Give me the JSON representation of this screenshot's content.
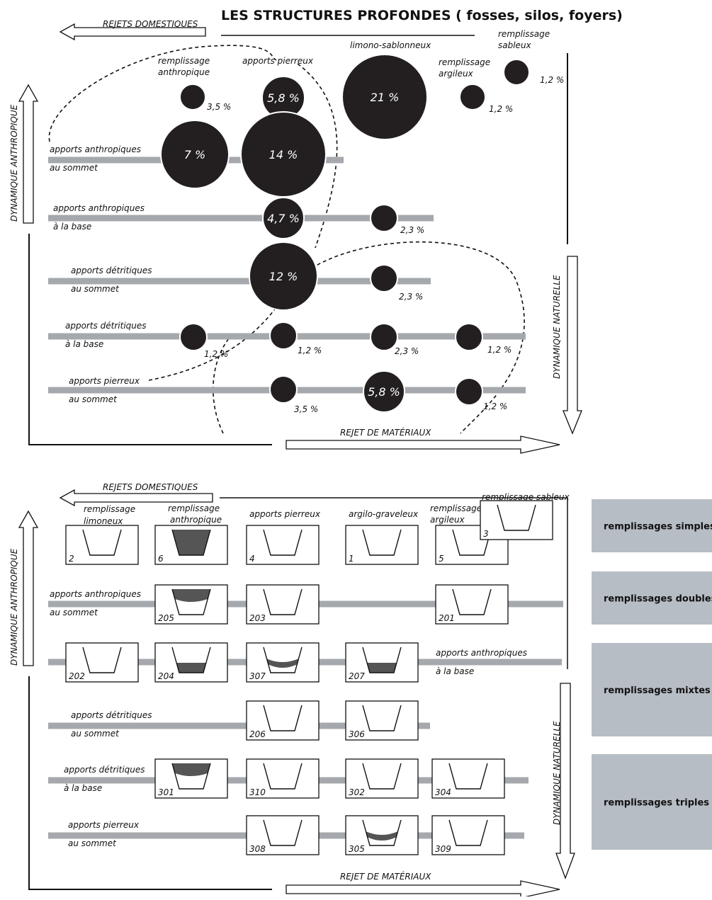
{
  "title": "LES STRUCTURES PROFONDES ( fosses, silos, foyers)",
  "top": {
    "rejets_domestiques": "REJETS DOMESTIQUES",
    "dynamique_anthropique": "DYNAMIQUE ANTHROPIQUE",
    "dynamique_naturelle": "DYNAMIQUE NATURELLE",
    "rejet_materiaux": "REJET DE MATÉRIAUX",
    "columns": [
      [
        "remplissage",
        "anthropique"
      ],
      [
        "apports pierreux"
      ],
      [
        "limono-sablonneux"
      ],
      [
        "remplissage",
        "argileux"
      ],
      [
        "remplissage",
        "sableux"
      ]
    ],
    "rows": [
      [
        "apports anthropiques",
        "au sommet"
      ],
      [
        "apports anthropiques",
        "à la base"
      ],
      [
        "apports détritiques",
        "au sommet"
      ],
      [
        "apports détritiques",
        "à la base"
      ],
      [
        "apports pierreux",
        "au sommet"
      ]
    ],
    "bubbles": [
      "3,5 %",
      "5,8 %",
      "21 %",
      "1,2 %",
      "1,2 %",
      "7 %",
      "14 %",
      "4,7 %",
      "2,3 %",
      "12 %",
      "2,3 %",
      "1,2 %",
      "1,2 %",
      "2,3 %",
      "1,2 %",
      "3,5 %",
      "5,8 %",
      "1,2 %"
    ]
  },
  "bottom": {
    "rejets_domestiques": "REJETS DOMESTIQUES",
    "dynamique_anthropique": "DYNAMIQUE ANTHROPIQUE",
    "dynamique_naturelle": "DYNAMIQUE NATURELLE",
    "rejet_materiaux": "REJET DE MATÉRIAUX",
    "columns": [
      [
        "remplissage",
        "limoneux"
      ],
      [
        "remplissage",
        "anthropique"
      ],
      [
        "apports pierreux"
      ],
      [
        "argilo-graveleux"
      ],
      [
        "remplissage",
        "argileux"
      ],
      [
        "remplissage sableux"
      ]
    ],
    "rows": [
      [
        "apports anthropiques",
        "au sommet"
      ],
      [
        "apports anthropiques",
        "à la base"
      ],
      [
        "apports détritiques",
        "au sommet"
      ],
      [
        "apports détritiques",
        "à la base"
      ],
      [
        "apports pierreux",
        "au sommet"
      ]
    ],
    "pits": [
      "2",
      "6",
      "4",
      "1",
      "5",
      "3",
      "205",
      "203",
      "201",
      "202",
      "204",
      "307",
      "207",
      "206",
      "306",
      "301",
      "310",
      "302",
      "304",
      "308",
      "305",
      "309"
    ],
    "legend": [
      "remplissages simples",
      "remplissages doubles",
      "remplissages mixtes",
      "remplissages triples"
    ]
  }
}
